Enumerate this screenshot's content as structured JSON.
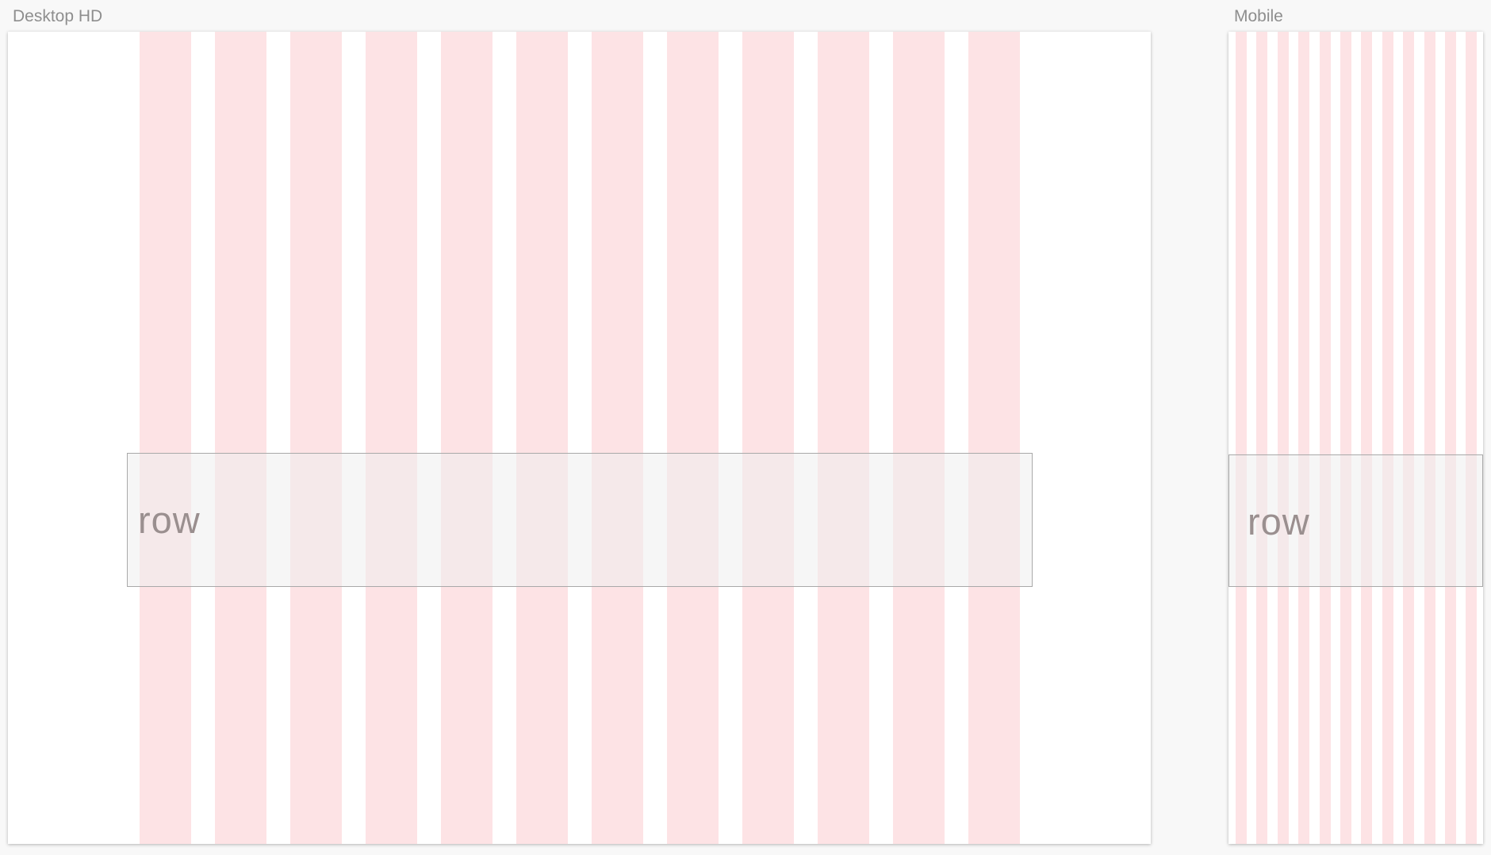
{
  "artboards": {
    "desktop": {
      "title": "Desktop HD",
      "columns": 12,
      "row_label": "row"
    },
    "mobile": {
      "title": "Mobile",
      "columns": 12,
      "row_label": "row"
    }
  },
  "colors": {
    "canvas": "#f8f8f8",
    "artboard": "#ffffff",
    "column_overlay": "#fde3e5",
    "row_fill": "#eeeeee",
    "row_border": "#a9a9a9",
    "title_text": "#8e8e8e",
    "row_text": "#9a8f8f"
  }
}
